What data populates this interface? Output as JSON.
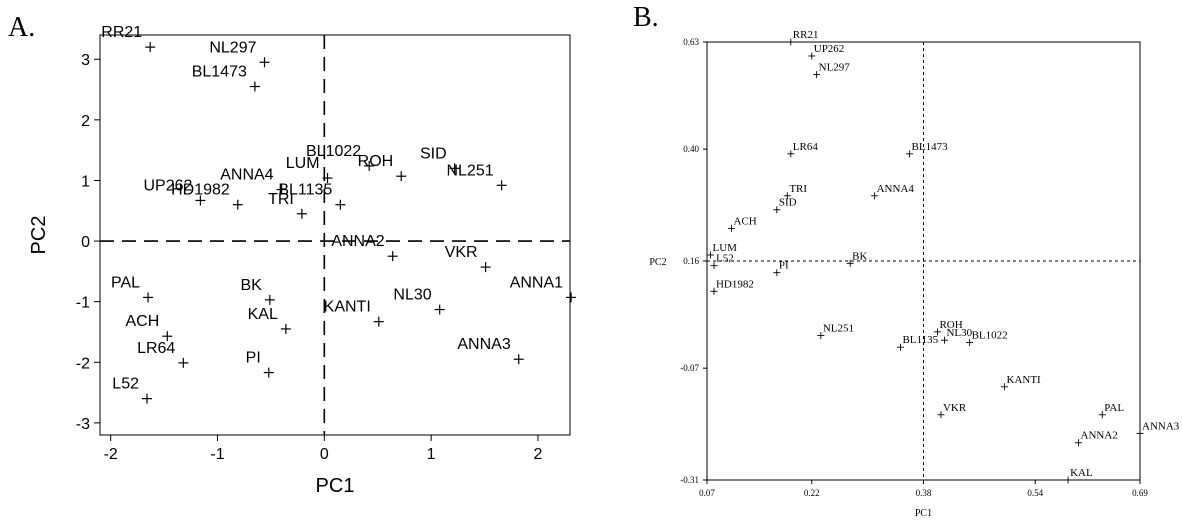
{
  "figure": {
    "panel_a_label": "A.",
    "panel_b_label": "B."
  },
  "chart_data": [
    {
      "type": "scatter",
      "panel": "A.",
      "title": "",
      "xlabel": "PC1",
      "ylabel": "PC2",
      "xlim": [
        -2.1,
        2.3
      ],
      "ylim": [
        -3.2,
        3.4
      ],
      "xticks": [
        -2,
        -1,
        0,
        1,
        2
      ],
      "yticks": [
        -3,
        -2,
        -1,
        0,
        1,
        2,
        3
      ],
      "reference_lines": {
        "x": 0,
        "y": 0
      },
      "grid": false,
      "points": [
        {
          "label": "RR21",
          "x": -1.63,
          "y": 3.2
        },
        {
          "label": "NL297",
          "x": -0.56,
          "y": 2.95
        },
        {
          "label": "BL1473",
          "x": -0.65,
          "y": 2.55
        },
        {
          "label": "BL1135",
          "x": 0.15,
          "y": 0.6
        },
        {
          "label": "ROH",
          "x": 0.72,
          "y": 1.07
        },
        {
          "label": "BL1022",
          "x": 0.42,
          "y": 1.24
        },
        {
          "label": "LUM",
          "x": 0.03,
          "y": 1.04
        },
        {
          "label": "SID",
          "x": 1.22,
          "y": 1.2
        },
        {
          "label": "NL251",
          "x": 1.66,
          "y": 0.92
        },
        {
          "label": "UP262",
          "x": -1.16,
          "y": 0.67
        },
        {
          "label": "HD1982",
          "x": -0.81,
          "y": 0.6
        },
        {
          "label": "ANNA4",
          "x": -0.4,
          "y": 0.85
        },
        {
          "label": "TRI",
          "x": -0.21,
          "y": 0.45
        },
        {
          "label": "ANNA2",
          "x": 0.64,
          "y": -0.25
        },
        {
          "label": "VKR",
          "x": 1.51,
          "y": -0.43
        },
        {
          "label": "ANNA1",
          "x": 2.31,
          "y": -0.93
        },
        {
          "label": "PAL",
          "x": -1.65,
          "y": -0.93
        },
        {
          "label": "BK",
          "x": -0.51,
          "y": -0.97
        },
        {
          "label": "KAL",
          "x": -0.36,
          "y": -1.45
        },
        {
          "label": "KANTI",
          "x": 0.51,
          "y": -1.33
        },
        {
          "label": "NL30",
          "x": 1.08,
          "y": -1.13
        },
        {
          "label": "ACH",
          "x": -1.47,
          "y": -1.57
        },
        {
          "label": "LR64",
          "x": -1.32,
          "y": -2.01
        },
        {
          "label": "ANNA3",
          "x": 1.82,
          "y": -1.95
        },
        {
          "label": "PI",
          "x": -0.52,
          "y": -2.17
        },
        {
          "label": "L52",
          "x": -1.66,
          "y": -2.6
        }
      ]
    },
    {
      "type": "scatter",
      "panel": "B.",
      "title": "",
      "xlabel": "PC1",
      "ylabel": "PC2",
      "xlim": [
        0.07,
        0.69
      ],
      "ylim": [
        -0.31,
        0.63
      ],
      "xticks": [
        "0.07",
        "0.22",
        "0.38",
        "0.54",
        "0.69"
      ],
      "yticks": [
        "-0.31",
        "-0.07",
        "0.16",
        "0.40",
        "0.63"
      ],
      "reference_lines": {
        "x": 0.38,
        "y": 0.16
      },
      "grid": false,
      "points": [
        {
          "label": "RR21",
          "x": 0.19,
          "y": 0.63
        },
        {
          "label": "UP262",
          "x": 0.22,
          "y": 0.6
        },
        {
          "label": "NL297",
          "x": 0.227,
          "y": 0.56
        },
        {
          "label": "LR64",
          "x": 0.19,
          "y": 0.39
        },
        {
          "label": "BL1473",
          "x": 0.36,
          "y": 0.39
        },
        {
          "label": "TRI",
          "x": 0.185,
          "y": 0.3
        },
        {
          "label": "ANNA4",
          "x": 0.31,
          "y": 0.3
        },
        {
          "label": "SID",
          "x": 0.17,
          "y": 0.27
        },
        {
          "label": "ACH",
          "x": 0.105,
          "y": 0.23
        },
        {
          "label": "LUM",
          "x": 0.075,
          "y": 0.173
        },
        {
          "label": "L52",
          "x": 0.08,
          "y": 0.15
        },
        {
          "label": "PI",
          "x": 0.17,
          "y": 0.135
        },
        {
          "label": "BK",
          "x": 0.275,
          "y": 0.155
        },
        {
          "label": "HD1982",
          "x": 0.08,
          "y": 0.095
        },
        {
          "label": "NL251",
          "x": 0.233,
          "y": 0.0
        },
        {
          "label": "BL1135",
          "x": 0.347,
          "y": -0.025
        },
        {
          "label": "ROH",
          "x": 0.4,
          "y": 0.008
        },
        {
          "label": "NL30",
          "x": 0.41,
          "y": -0.01
        },
        {
          "label": "BL1022",
          "x": 0.446,
          "y": -0.015
        },
        {
          "label": "KANTI",
          "x": 0.496,
          "y": -0.11
        },
        {
          "label": "VKR",
          "x": 0.405,
          "y": -0.17
        },
        {
          "label": "PAL",
          "x": 0.636,
          "y": -0.17
        },
        {
          "label": "ANNA3",
          "x": 0.69,
          "y": -0.21
        },
        {
          "label": "ANNA2",
          "x": 0.602,
          "y": -0.23
        },
        {
          "label": "KAL",
          "x": 0.587,
          "y": -0.31
        }
      ]
    }
  ]
}
